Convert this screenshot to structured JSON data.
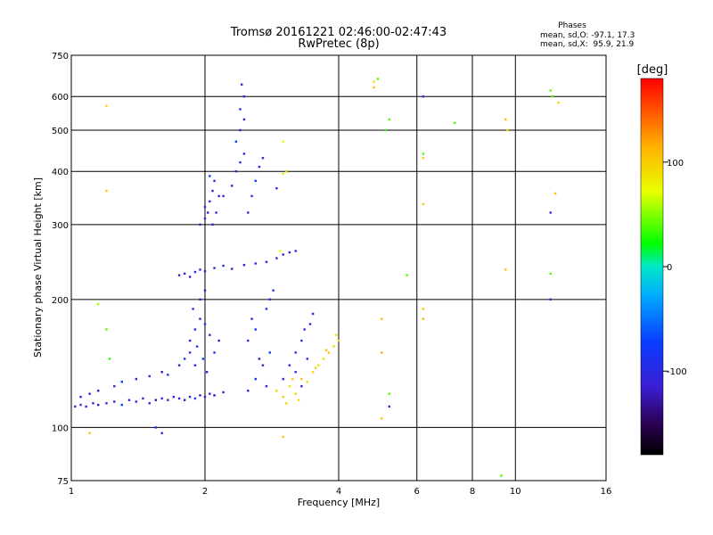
{
  "chart_data": {
    "type": "scatter",
    "title": "Tromsø 20161221 02:46:00-02:47:43",
    "subtitle": "RwPretec (8p)",
    "xlabel": "Frequency [MHz]",
    "ylabel": "Stationary phase Virtual Height [km]",
    "x_scale": "log",
    "y_scale": "log",
    "xlim": [
      1,
      16
    ],
    "ylim": [
      75,
      750
    ],
    "x_ticks": [
      1,
      2,
      4,
      6,
      8,
      10,
      16
    ],
    "x_tick_labels": [
      "1",
      "2",
      "4",
      "6",
      "8",
      "10",
      "16"
    ],
    "x_grid_lines": [
      2,
      4,
      6,
      8,
      10
    ],
    "y_ticks": [
      75,
      100,
      200,
      300,
      400,
      500,
      600,
      750
    ],
    "y_tick_labels": [
      "75",
      "100",
      "200",
      "300",
      "400",
      "500",
      "600",
      "750"
    ],
    "grid": true,
    "stats": {
      "heading": "Phases",
      "o_line": "mean, sd,O: -97.1, 17.3",
      "x_line": "mean, sd,X:  95.9, 21.9"
    },
    "colorbar": {
      "label": "[deg]",
      "range": [
        -180,
        180
      ],
      "ticks": [
        100,
        0,
        -100
      ],
      "tick_labels": [
        "100",
        "0",
        "-100"
      ]
    },
    "series": [
      {
        "points": [
          [
            1.02,
            112,
            -110
          ],
          [
            1.05,
            113,
            -105
          ],
          [
            1.08,
            112,
            -115
          ],
          [
            1.12,
            114,
            -100
          ],
          [
            1.15,
            113,
            -120
          ],
          [
            1.2,
            114,
            -108
          ],
          [
            1.25,
            115,
            -112
          ],
          [
            1.3,
            113,
            -95
          ],
          [
            1.35,
            116,
            -118
          ],
          [
            1.4,
            115,
            -105
          ],
          [
            1.45,
            117,
            -110
          ],
          [
            1.5,
            114,
            -100
          ],
          [
            1.55,
            116,
            -125
          ],
          [
            1.6,
            117,
            -108
          ],
          [
            1.65,
            116,
            -112
          ],
          [
            1.7,
            118,
            -115
          ],
          [
            1.75,
            117,
            -105
          ],
          [
            1.8,
            116,
            -120
          ],
          [
            1.85,
            118,
            -108
          ],
          [
            1.9,
            117,
            -95
          ],
          [
            1.95,
            119,
            -115
          ],
          [
            2.0,
            118,
            -110
          ],
          [
            2.05,
            120,
            -105
          ],
          [
            2.1,
            119,
            -125
          ],
          [
            2.2,
            121,
            -112
          ],
          [
            1.05,
            118,
            -110
          ],
          [
            1.1,
            120,
            -100
          ],
          [
            1.15,
            122,
            -120
          ],
          [
            1.25,
            125,
            -108
          ],
          [
            1.3,
            128,
            -90
          ],
          [
            1.4,
            130,
            -115
          ],
          [
            1.5,
            132,
            -105
          ],
          [
            1.6,
            135,
            -125
          ],
          [
            1.65,
            133,
            -100
          ],
          [
            1.75,
            140,
            -110
          ],
          [
            1.8,
            145,
            -95
          ],
          [
            1.85,
            150,
            -115
          ],
          [
            1.9,
            140,
            -108
          ],
          [
            1.85,
            160,
            -110
          ],
          [
            1.9,
            170,
            -100
          ],
          [
            1.95,
            180,
            -115
          ],
          [
            2.0,
            175,
            -95
          ],
          [
            1.88,
            190,
            -105
          ],
          [
            1.95,
            200,
            -110
          ],
          [
            2.0,
            210,
            -120
          ],
          [
            1.92,
            155,
            -100
          ],
          [
            2.05,
            165,
            -112
          ],
          [
            1.98,
            145,
            -90
          ],
          [
            2.02,
            135,
            -108
          ],
          [
            2.1,
            150,
            -95
          ],
          [
            2.15,
            160,
            -115
          ],
          [
            1.75,
            228,
            -110
          ],
          [
            1.8,
            230,
            -105
          ],
          [
            1.85,
            226,
            -120
          ],
          [
            1.9,
            232,
            -100
          ],
          [
            1.95,
            235,
            -115
          ],
          [
            2.0,
            233,
            -108
          ],
          [
            2.1,
            237,
            -112
          ],
          [
            2.2,
            240,
            -100
          ],
          [
            2.3,
            236,
            -118
          ],
          [
            2.45,
            241,
            -110
          ],
          [
            2.6,
            243,
            -105
          ],
          [
            2.75,
            245,
            -108
          ],
          [
            2.9,
            250,
            -115
          ],
          [
            3.0,
            255,
            -110
          ],
          [
            3.1,
            258,
            -112
          ],
          [
            3.2,
            260,
            -105
          ],
          [
            1.95,
            300,
            -110
          ],
          [
            2.0,
            310,
            -100
          ],
          [
            2.03,
            320,
            -115
          ],
          [
            2.05,
            340,
            -105
          ],
          [
            2.08,
            360,
            -112
          ],
          [
            2.1,
            380,
            -100
          ],
          [
            2.12,
            320,
            -108
          ],
          [
            2.15,
            350,
            -115
          ],
          [
            2.0,
            330,
            -110
          ],
          [
            2.05,
            390,
            -90
          ],
          [
            2.08,
            300,
            -105
          ],
          [
            2.2,
            350,
            -110
          ],
          [
            2.3,
            370,
            -105
          ],
          [
            2.35,
            400,
            -112
          ],
          [
            2.4,
            420,
            -100
          ],
          [
            2.45,
            440,
            -110
          ],
          [
            2.35,
            470,
            -95
          ],
          [
            2.4,
            500,
            -105
          ],
          [
            2.45,
            530,
            -110
          ],
          [
            2.4,
            560,
            -100
          ],
          [
            2.45,
            600,
            -108
          ],
          [
            2.42,
            640,
            -112
          ],
          [
            2.5,
            320,
            -110
          ],
          [
            2.55,
            350,
            -100
          ],
          [
            2.6,
            380,
            -95
          ],
          [
            2.65,
            410,
            -105
          ],
          [
            2.7,
            430,
            -110
          ],
          [
            2.5,
            122,
            -110
          ],
          [
            2.6,
            130,
            -100
          ],
          [
            2.7,
            140,
            -115
          ],
          [
            2.8,
            150,
            -95
          ],
          [
            2.5,
            160,
            -105
          ],
          [
            2.6,
            170,
            -100
          ],
          [
            2.55,
            180,
            -110
          ],
          [
            2.75,
            190,
            -95
          ],
          [
            2.8,
            200,
            -105
          ],
          [
            2.85,
            210,
            -100
          ],
          [
            2.65,
            145,
            -120
          ],
          [
            2.75,
            125,
            -108
          ],
          [
            3.0,
            130,
            -115
          ],
          [
            3.1,
            140,
            -110
          ],
          [
            3.2,
            150,
            -105
          ],
          [
            3.3,
            160,
            -100
          ],
          [
            3.35,
            170,
            -108
          ],
          [
            3.45,
            175,
            -112
          ],
          [
            3.5,
            185,
            -110
          ],
          [
            3.4,
            145,
            -105
          ],
          [
            3.3,
            125,
            -108
          ],
          [
            3.2,
            135,
            -100
          ],
          [
            2.9,
            122,
            100
          ],
          [
            3.0,
            118,
            105
          ],
          [
            3.1,
            125,
            95
          ],
          [
            3.2,
            120,
            100
          ],
          [
            3.3,
            130,
            110
          ],
          [
            3.4,
            128,
            98
          ],
          [
            3.5,
            135,
            102
          ],
          [
            3.6,
            140,
            95
          ],
          [
            3.7,
            145,
            100
          ],
          [
            3.8,
            150,
            105
          ],
          [
            3.9,
            155,
            98
          ],
          [
            4.0,
            160,
            102
          ],
          [
            3.95,
            165,
            95
          ],
          [
            3.75,
            152,
            110
          ],
          [
            3.55,
            138,
            100
          ],
          [
            3.25,
            116,
            95
          ],
          [
            3.05,
            114,
            102
          ],
          [
            3.15,
            130,
            105
          ],
          [
            1.2,
            570,
            100
          ],
          [
            1.2,
            360,
            110
          ],
          [
            1.15,
            195,
            60
          ],
          [
            1.22,
            145,
            30
          ],
          [
            1.1,
            97,
            110
          ],
          [
            1.2,
            170,
            40
          ],
          [
            1.55,
            100,
            -100
          ],
          [
            1.6,
            97,
            -110
          ],
          [
            3.0,
            470,
            80
          ],
          [
            3.05,
            400,
            100
          ],
          [
            3.0,
            395,
            90
          ],
          [
            2.9,
            365,
            -100
          ],
          [
            3.0,
            95,
            110
          ],
          [
            2.95,
            260,
            80
          ],
          [
            4.8,
            650,
            100
          ],
          [
            4.9,
            660,
            40
          ],
          [
            4.8,
            630,
            110
          ],
          [
            5.2,
            530,
            40
          ],
          [
            5.1,
            500,
            30
          ],
          [
            5.2,
            120,
            40
          ],
          [
            5.2,
            112,
            -100
          ],
          [
            5.0,
            180,
            110
          ],
          [
            5.0,
            150,
            120
          ],
          [
            5.0,
            105,
            110
          ],
          [
            6.2,
            600,
            -100
          ],
          [
            6.2,
            440,
            40
          ],
          [
            6.2,
            430,
            110
          ],
          [
            6.2,
            335,
            110
          ],
          [
            5.7,
            228,
            40
          ],
          [
            6.2,
            190,
            110
          ],
          [
            6.2,
            180,
            120
          ],
          [
            7.3,
            520,
            40
          ],
          [
            9.5,
            530,
            110
          ],
          [
            9.6,
            500,
            100
          ],
          [
            9.5,
            235,
            110
          ],
          [
            9.3,
            77,
            40
          ],
          [
            12.0,
            620,
            40
          ],
          [
            12.1,
            600,
            40
          ],
          [
            12.0,
            320,
            -100
          ],
          [
            12.5,
            580,
            100
          ],
          [
            12.3,
            355,
            110
          ],
          [
            12.0,
            230,
            40
          ],
          [
            12.0,
            200,
            -100
          ]
        ]
      }
    ]
  }
}
